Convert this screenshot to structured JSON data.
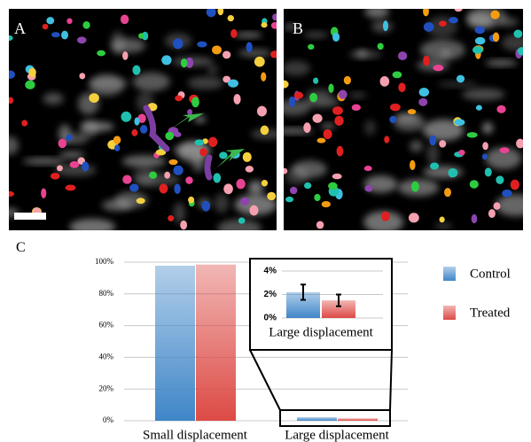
{
  "panels": {
    "a": {
      "label": "A"
    },
    "b": {
      "label": "B"
    },
    "c": {
      "label": "C"
    }
  },
  "chart_data": {
    "type": "bar",
    "categories": [
      "Small displacement",
      "Large displacement"
    ],
    "series": [
      {
        "name": "Control",
        "color": "#3f86c8",
        "values": [
          97.8,
          2.2
        ],
        "errors": [
          null,
          0.65
        ]
      },
      {
        "name": "Treated",
        "color": "#dd4a45",
        "values": [
          98.5,
          1.5
        ],
        "errors": [
          null,
          0.5
        ]
      }
    ],
    "ylim": [
      0,
      100
    ],
    "yticks": [
      {
        "value": 0,
        "label": "0%"
      },
      {
        "value": 20,
        "label": "20%"
      },
      {
        "value": 40,
        "label": "40%"
      },
      {
        "value": 60,
        "label": "60%"
      },
      {
        "value": 80,
        "label": "80%"
      },
      {
        "value": 100,
        "label": "100%"
      }
    ],
    "grid": true,
    "inset": {
      "ylim": [
        0,
        4
      ],
      "yticks": [
        {
          "value": 0,
          "label": "0%"
        },
        {
          "value": 2,
          "label": "2%"
        },
        {
          "value": 4,
          "label": "4%"
        }
      ]
    }
  }
}
